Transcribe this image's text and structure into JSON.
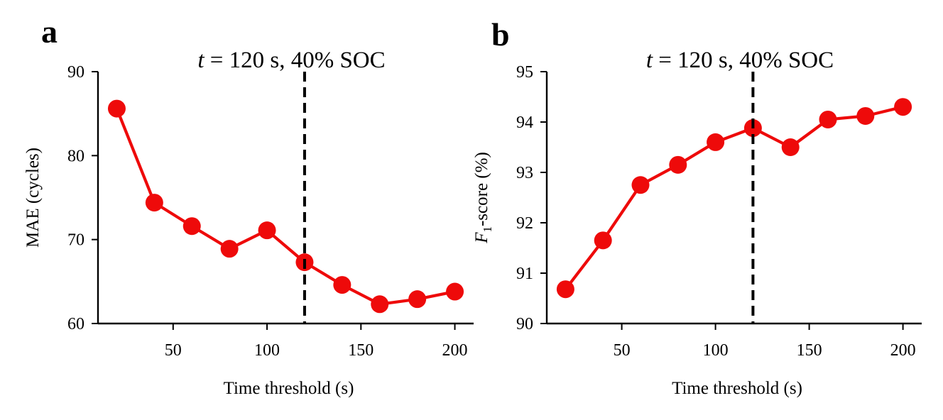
{
  "colors": {
    "line": "#ee0a0a",
    "axis": "#000000",
    "threshold": "#000000"
  },
  "chart_data": [
    {
      "type": "line",
      "panel_label": "a",
      "title": {
        "var": "t",
        "rest": " = 120 s, 40% SOC"
      },
      "xlabel": "Time threshold (s)",
      "ylabel": "MAE (cycles)",
      "xlim": [
        10,
        210
      ],
      "ylim": [
        60,
        90
      ],
      "xticks": [
        50,
        100,
        150,
        200
      ],
      "yticks": [
        60,
        70,
        80,
        90
      ],
      "threshold_x": 120,
      "grid": false,
      "series": [
        {
          "x": [
            20,
            40,
            60,
            80,
            100,
            120,
            140,
            160,
            180,
            200
          ],
          "y": [
            85.6,
            74.4,
            71.6,
            68.9,
            71.1,
            67.3,
            64.6,
            62.3,
            62.9,
            63.8
          ]
        }
      ]
    },
    {
      "type": "line",
      "panel_label": "b",
      "title": {
        "var": "t",
        "rest": " = 120 s, 40% SOC"
      },
      "xlabel": "Time threshold (s)",
      "ylabel": {
        "var": "F",
        "sub": "1",
        "rest": "-score (%)"
      },
      "xlim": [
        10,
        210
      ],
      "ylim": [
        90,
        95
      ],
      "xticks": [
        50,
        100,
        150,
        200
      ],
      "yticks": [
        90,
        91,
        92,
        93,
        94,
        95
      ],
      "threshold_x": 120,
      "grid": false,
      "series": [
        {
          "x": [
            20,
            40,
            60,
            80,
            100,
            120,
            140,
            160,
            180,
            200
          ],
          "y": [
            90.68,
            91.65,
            92.75,
            93.15,
            93.6,
            93.88,
            93.5,
            94.05,
            94.12,
            94.3
          ]
        }
      ]
    }
  ]
}
